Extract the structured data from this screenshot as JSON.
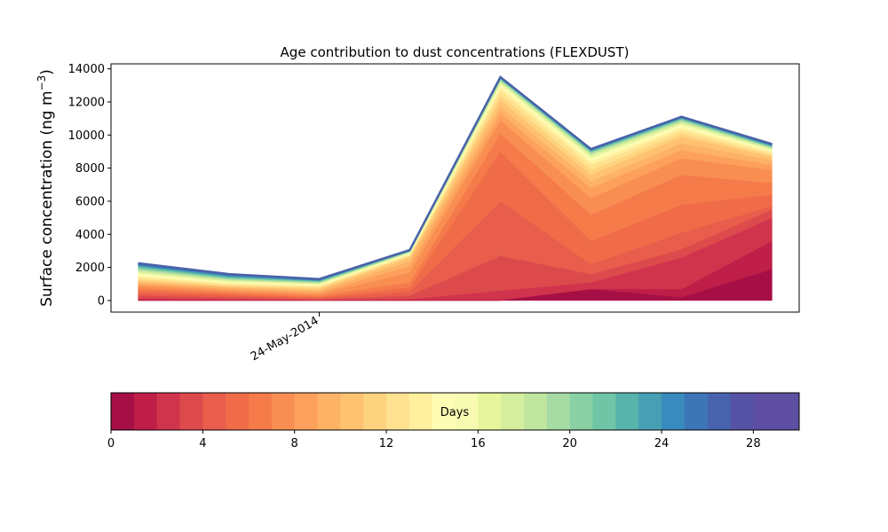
{
  "chart_data": {
    "type": "area",
    "title": "Age contribution to dust concentrations (FLEXDUST)",
    "ylabel": "Surface concentration (ng m",
    "ylabel_sup": "−3",
    "ylabel_close": ")",
    "xlabel": "",
    "ylim": [
      -700,
      14300
    ],
    "yticks": [
      0,
      2000,
      4000,
      6000,
      8000,
      10000,
      12000,
      14000
    ],
    "x_index": [
      0,
      1,
      2,
      3,
      4,
      5,
      6,
      7
    ],
    "x_range": [
      -0.3,
      7.3
    ],
    "xtick": {
      "index": 2,
      "label": "24-May-2014"
    },
    "total": [
      2250,
      1600,
      1300,
      3050,
      13500,
      9150,
      11100,
      9450
    ],
    "cumulative_bands": [
      [
        0,
        0,
        0,
        0,
        0,
        0,
        0,
        0
      ],
      [
        0,
        0,
        0,
        0,
        0,
        700,
        200,
        1900
      ],
      [
        50,
        30,
        20,
        50,
        50,
        700,
        700,
        3600
      ],
      [
        150,
        100,
        40,
        100,
        600,
        1100,
        2600,
        5000
      ],
      [
        300,
        200,
        80,
        300,
        2700,
        1600,
        3100,
        5500
      ],
      [
        450,
        300,
        150,
        550,
        6000,
        2200,
        4100,
        5700
      ],
      [
        600,
        400,
        200,
        800,
        9000,
        3600,
        5800,
        6400
      ],
      [
        750,
        500,
        300,
        1100,
        10100,
        5200,
        7600,
        7100
      ],
      [
        900,
        600,
        400,
        1700,
        10900,
        6200,
        8600,
        7900
      ],
      [
        1000,
        700,
        500,
        2100,
        11300,
        6800,
        9100,
        8200
      ],
      [
        1100,
        800,
        600,
        2400,
        11700,
        7200,
        9500,
        8500
      ],
      [
        1200,
        850,
        700,
        2600,
        12100,
        7600,
        9900,
        8700
      ],
      [
        1300,
        900,
        780,
        2700,
        12400,
        7900,
        10100,
        8800
      ],
      [
        1400,
        1000,
        850,
        2750,
        12700,
        8200,
        10300,
        8900
      ],
      [
        1500,
        1050,
        900,
        2800,
        12900,
        8400,
        10450,
        9000
      ],
      [
        1580,
        1100,
        950,
        2850,
        13000,
        8550,
        10550,
        9050
      ],
      [
        1650,
        1150,
        1000,
        2880,
        13100,
        8650,
        10650,
        9100
      ],
      [
        1720,
        1200,
        1030,
        2900,
        13180,
        8750,
        10720,
        9150
      ],
      [
        1790,
        1250,
        1060,
        2920,
        13240,
        8830,
        10790,
        9190
      ],
      [
        1860,
        1290,
        1090,
        2940,
        13290,
        8890,
        10850,
        9230
      ],
      [
        1920,
        1330,
        1120,
        2960,
        13330,
        8940,
        10900,
        9260
      ],
      [
        1980,
        1370,
        1150,
        2980,
        13370,
        8990,
        10940,
        9290
      ],
      [
        2030,
        1410,
        1170,
        2990,
        13400,
        9020,
        10980,
        9320
      ],
      [
        2080,
        1450,
        1200,
        3000,
        13420,
        9050,
        11010,
        9350
      ],
      [
        2120,
        1490,
        1220,
        3010,
        13440,
        9070,
        11040,
        9370
      ],
      [
        2160,
        1520,
        1240,
        3020,
        13460,
        9090,
        11060,
        9390
      ],
      [
        2190,
        1550,
        1260,
        3030,
        13470,
        9110,
        11070,
        9410
      ],
      [
        2210,
        1570,
        1275,
        3035,
        13480,
        9120,
        11080,
        9420
      ],
      [
        2230,
        1585,
        1285,
        3040,
        13490,
        9135,
        11090,
        9435
      ],
      [
        2245,
        1595,
        1295,
        3045,
        13495,
        9145,
        11095,
        9445
      ],
      [
        2250,
        1600,
        1300,
        3050,
        13500,
        9150,
        11100,
        9450
      ]
    ],
    "colorbar": {
      "label": "Days",
      "min": 0,
      "max": 30,
      "ticks": [
        0,
        4,
        8,
        12,
        16,
        20,
        24,
        28
      ],
      "colors": [
        "#a50f45",
        "#be1e48",
        "#d0344c",
        "#dd4a4c",
        "#e85d4b",
        "#f06b48",
        "#f67b4b",
        "#f98e52",
        "#fca05c",
        "#fdb266",
        "#fec271",
        "#fed380",
        "#fee28f",
        "#fff09e",
        "#fffcb4",
        "#f6fbb1",
        "#e7f59c",
        "#d5ee9d",
        "#c0e6a0",
        "#a6dba4",
        "#89d0a4",
        "#6fc5a6",
        "#58b3ab",
        "#469fb3",
        "#3a8bbd",
        "#3d76b7",
        "#4763ae",
        "#5652a6",
        "#5e4fa2",
        "#5e4fa2"
      ]
    },
    "grid": false,
    "legend": "none"
  }
}
